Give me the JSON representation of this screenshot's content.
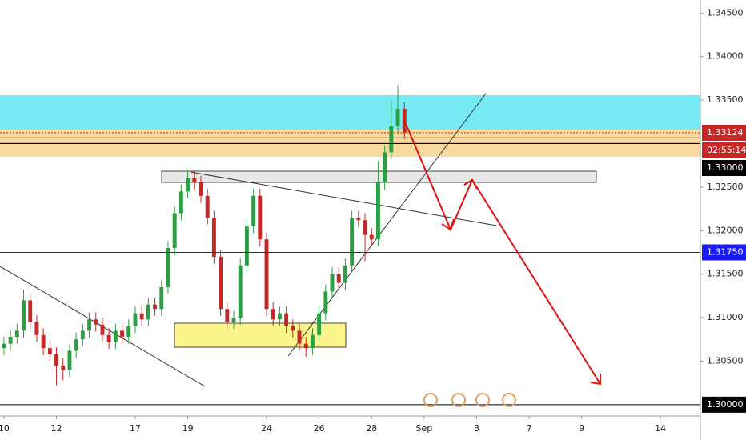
{
  "chart_data": {
    "type": "candlestick",
    "xlim": [
      -0.15,
      26.52
    ],
    "ylim": [
      1.2987,
      1.3465
    ],
    "xticks": [
      {
        "value": 0,
        "label": "10"
      },
      {
        "value": 2,
        "label": "12"
      },
      {
        "value": 5,
        "label": "17"
      },
      {
        "value": 7,
        "label": "19"
      },
      {
        "value": 10,
        "label": "24"
      },
      {
        "value": 12,
        "label": "26"
      },
      {
        "value": 14,
        "label": "28"
      },
      {
        "value": 16,
        "label": "Sep"
      },
      {
        "value": 18,
        "label": "3"
      },
      {
        "value": 20,
        "label": "7"
      },
      {
        "value": 22,
        "label": "9"
      },
      {
        "value": 25,
        "label": "14"
      }
    ],
    "yticks": [
      {
        "value": 1.345,
        "label": "1.34500"
      },
      {
        "value": 1.34,
        "label": "1.34000"
      },
      {
        "value": 1.335,
        "label": "1.33500"
      },
      {
        "value": 1.325,
        "label": "1.32500"
      },
      {
        "value": 1.32,
        "label": "1.32000"
      },
      {
        "value": 1.315,
        "label": "1.31500"
      },
      {
        "value": 1.31,
        "label": "1.31000"
      },
      {
        "value": 1.305,
        "label": "1.30500"
      }
    ],
    "up_color": "#2e9e44",
    "down_color": "#c62828",
    "price_lines": [
      {
        "value": 1.33124,
        "label": "1.33124",
        "color": "#c62828"
      },
      {
        "value": 1.33,
        "label": "1.33000",
        "color": "#000000"
      },
      {
        "value": 1.3175,
        "label": "1.31750",
        "color": "#1a1aff"
      },
      {
        "value": 1.3,
        "label": "1.30000",
        "color": "#000000"
      }
    ],
    "countdown": "02:55:14",
    "x": [
      0,
      0.25,
      0.5,
      0.75,
      1,
      1.25,
      1.5,
      1.75,
      2,
      2.25,
      2.5,
      2.75,
      3,
      3.25,
      3.5,
      3.75,
      4,
      4.25,
      4.5,
      4.75,
      5,
      5.25,
      5.5,
      5.75,
      6,
      6.25,
      6.5,
      6.75,
      7,
      7.25,
      7.5,
      7.75,
      8,
      8.25,
      8.5,
      8.75,
      9,
      9.25,
      9.5,
      9.75,
      10,
      10.25,
      10.5,
      10.75,
      11,
      11.25,
      11.5,
      11.75,
      12,
      12.25,
      12.5,
      12.75,
      13,
      13.25,
      13.5,
      13.75,
      14,
      14.25,
      14.5,
      14.75,
      15,
      15.25
    ],
    "open": [
      1.3065,
      1.307,
      1.3078,
      1.3085,
      1.312,
      1.3095,
      1.308,
      1.3065,
      1.3058,
      1.3045,
      1.304,
      1.3062,
      1.3075,
      1.3085,
      1.3098,
      1.3092,
      1.308,
      1.3072,
      1.3085,
      1.3078,
      1.309,
      1.3105,
      1.3098,
      1.3115,
      1.311,
      1.3135,
      1.318,
      1.322,
      1.3245,
      1.326,
      1.3255,
      1.324,
      1.3215,
      1.317,
      1.311,
      1.3095,
      1.31,
      1.316,
      1.3205,
      1.324,
      1.319,
      1.311,
      1.3098,
      1.3105,
      1.309,
      1.3085,
      1.307,
      1.3065,
      1.308,
      1.3105,
      1.313,
      1.315,
      1.314,
      1.316,
      1.3215,
      1.3212,
      1.3195,
      1.319,
      1.3255,
      1.329,
      1.332,
      1.334
    ],
    "high": [
      1.3078,
      1.3086,
      1.3093,
      1.3132,
      1.3128,
      1.3103,
      1.3088,
      1.3073,
      1.3066,
      1.3053,
      1.307,
      1.3083,
      1.3093,
      1.3106,
      1.3106,
      1.31,
      1.3088,
      1.3093,
      1.3093,
      1.3098,
      1.3113,
      1.3113,
      1.3123,
      1.3123,
      1.3143,
      1.3188,
      1.3228,
      1.3253,
      1.327,
      1.3268,
      1.3263,
      1.3248,
      1.3223,
      1.3178,
      1.3118,
      1.3108,
      1.3168,
      1.3213,
      1.3248,
      1.3248,
      1.3198,
      1.3118,
      1.3113,
      1.3113,
      1.3098,
      1.3093,
      1.3078,
      1.3088,
      1.3113,
      1.3138,
      1.3158,
      1.3158,
      1.3168,
      1.3223,
      1.3223,
      1.322,
      1.3203,
      1.328,
      1.3298,
      1.335,
      1.3367,
      1.3348
    ],
    "low": [
      1.3057,
      1.3062,
      1.307,
      1.3077,
      1.3087,
      1.3072,
      1.3057,
      1.305,
      1.3022,
      1.3028,
      1.3032,
      1.3054,
      1.3067,
      1.3077,
      1.3084,
      1.3072,
      1.3064,
      1.3064,
      1.307,
      1.307,
      1.3082,
      1.309,
      1.309,
      1.3102,
      1.3102,
      1.3127,
      1.3172,
      1.3212,
      1.3237,
      1.3247,
      1.3232,
      1.3207,
      1.3162,
      1.3102,
      1.3087,
      1.3087,
      1.3092,
      1.3152,
      1.3197,
      1.3182,
      1.3102,
      1.309,
      1.309,
      1.3082,
      1.3077,
      1.3062,
      1.3055,
      1.3057,
      1.3072,
      1.3097,
      1.3122,
      1.3132,
      1.3132,
      1.3152,
      1.3204,
      1.3165,
      1.3182,
      1.3182,
      1.3247,
      1.3282,
      1.3312,
      1.3305
    ],
    "close": [
      1.307,
      1.3078,
      1.3085,
      1.312,
      1.3095,
      1.308,
      1.3065,
      1.3058,
      1.3045,
      1.304,
      1.3062,
      1.3075,
      1.3085,
      1.3098,
      1.3092,
      1.308,
      1.3072,
      1.3085,
      1.3078,
      1.309,
      1.3105,
      1.3098,
      1.3115,
      1.311,
      1.3135,
      1.318,
      1.322,
      1.3245,
      1.326,
      1.3255,
      1.324,
      1.3215,
      1.317,
      1.311,
      1.3095,
      1.31,
      1.316,
      1.3205,
      1.324,
      1.319,
      1.311,
      1.3098,
      1.3105,
      1.309,
      1.3085,
      1.307,
      1.3065,
      1.308,
      1.3105,
      1.313,
      1.315,
      1.314,
      1.316,
      1.3215,
      1.3212,
      1.3195,
      1.319,
      1.3255,
      1.329,
      1.332,
      1.334,
      1.33124
    ]
  }
}
